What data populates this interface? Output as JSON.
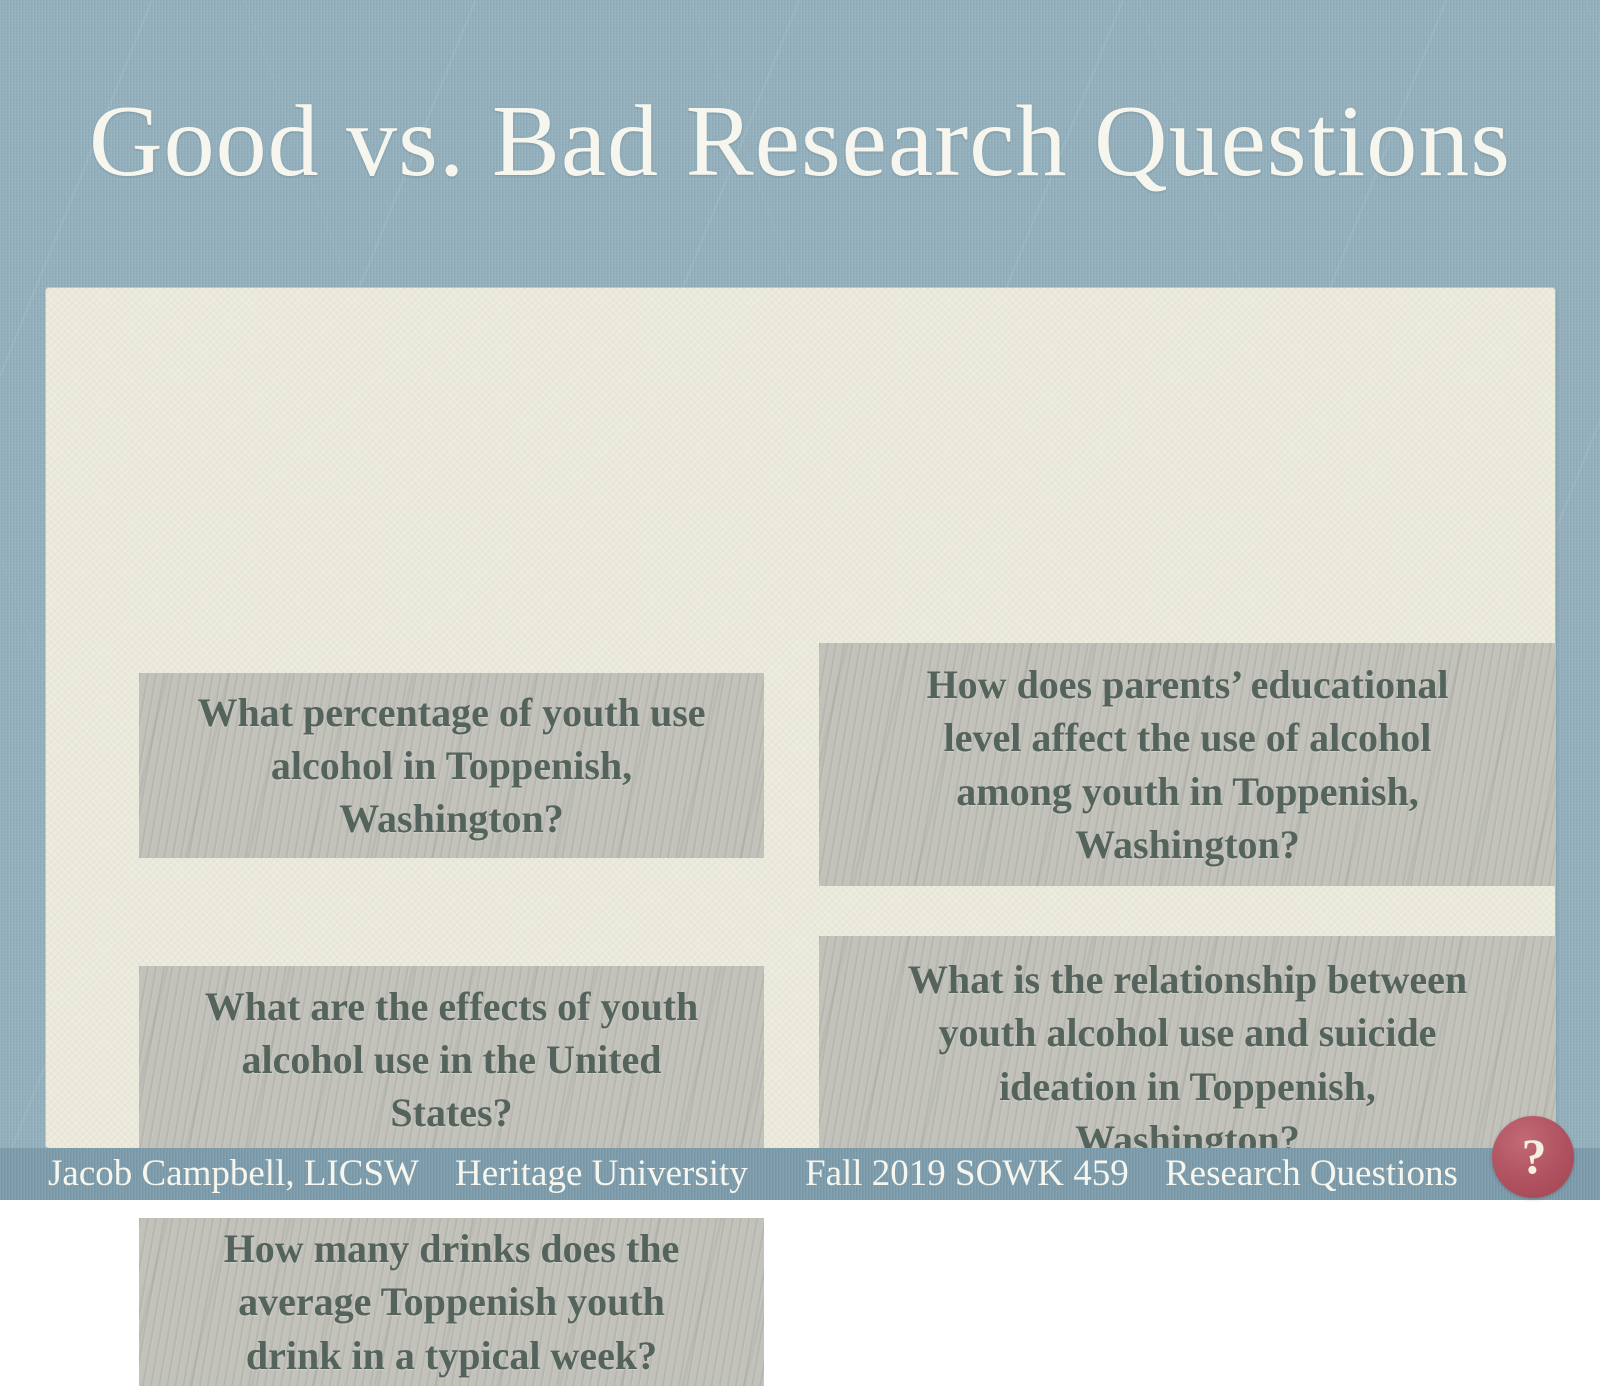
{
  "slide": {
    "title": "Good vs. Bad Research Questions",
    "questions": [
      {
        "text": "What percentage of youth use\nalcohol in Toppenish,\nWashington?"
      },
      {
        "text": "How does parents’ educational\nlevel affect the use of alcohol\namong youth in Toppenish,\nWashington?"
      },
      {
        "text": "What are the effects of youth\nalcohol use in the United\nStates?"
      },
      {
        "text": "What is the relationship between\nyouth alcohol use and suicide\nideation in Toppenish,\nWashington?"
      },
      {
        "text": "How many drinks does the\naverage Toppenish youth\ndrink in a typical week?"
      }
    ],
    "footer": {
      "items": [
        "Jacob Campbell, LICSW",
        "Heritage University",
        "Fall 2019 SOWK 459",
        "Research Questions"
      ]
    },
    "help_badge": {
      "label": "?"
    }
  },
  "colors": {
    "bg-blue": "#92afbc",
    "footer-blue": "#7d9cab",
    "panel-cream": "#edecdf",
    "box-gray": "#c2c2bb",
    "box-text": "#54635b",
    "light-text": "#f6f6ee",
    "badge-red": "#b05160",
    "badge-text": "#f3efe4"
  }
}
